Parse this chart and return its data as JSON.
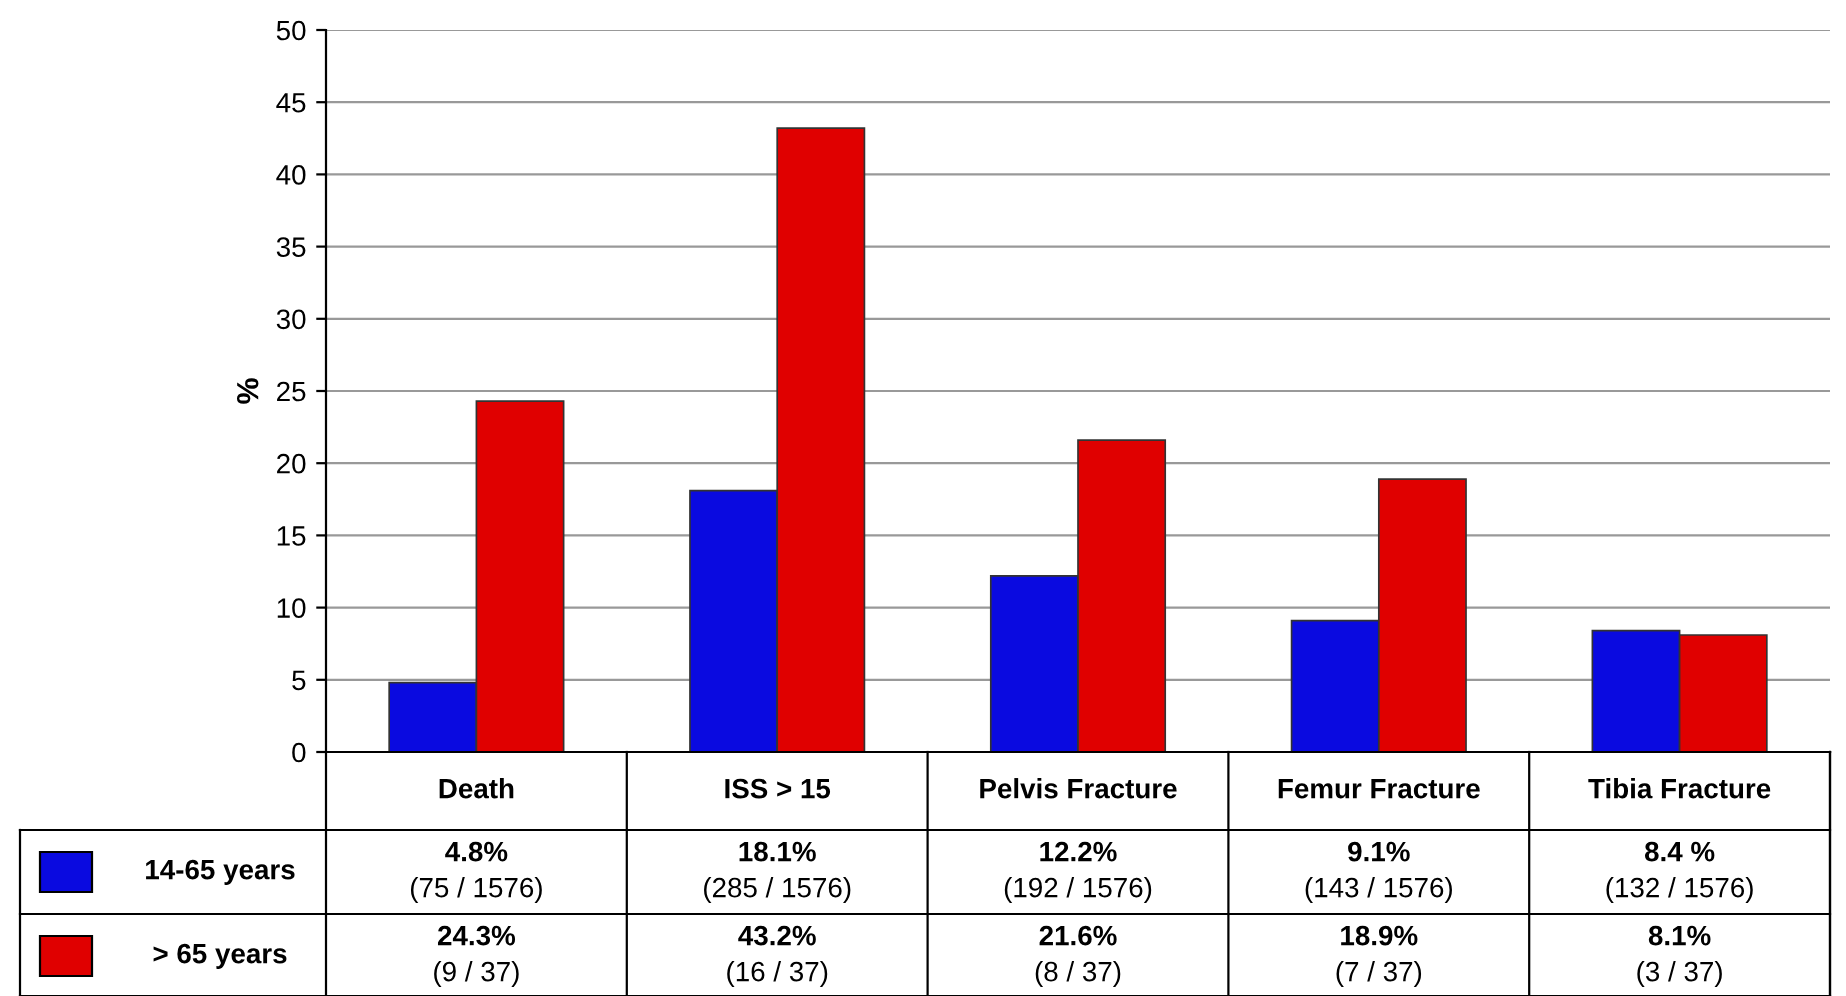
{
  "chart_data": {
    "type": "bar",
    "ylabel": "%",
    "categories": [
      "Death",
      "ISS > 15",
      "Pelvis Fracture",
      "Femur Fracture",
      "Tibia Fracture"
    ],
    "series": [
      {
        "name": "14-65 years",
        "color": "#0a0ae0",
        "values": [
          4.8,
          18.1,
          12.2,
          9.1,
          8.4
        ],
        "value_labels": [
          "4.8%\n(75 / 1576)",
          "18.1%\n(285 / 1576)",
          "12.2%\n(192 / 1576)",
          "9.1%\n(143 / 1576)",
          "8.4 %\n(132 / 1576)"
        ]
      },
      {
        "name": "> 65 years",
        "color": "#e00000",
        "values": [
          24.3,
          43.2,
          21.6,
          18.9,
          8.1
        ],
        "value_labels": [
          "24.3%\n(9 / 37)",
          "43.2%\n(16 / 37)",
          "21.6%\n(8 / 37)",
          "18.9%\n(7 / 37)",
          "8.1%\n(3 / 37)"
        ]
      }
    ],
    "ylim": [
      0,
      50
    ],
    "yticks": [
      0,
      5,
      10,
      15,
      20,
      25,
      30,
      35,
      40,
      45,
      50
    ],
    "grid": "y",
    "legend": "bottom"
  }
}
